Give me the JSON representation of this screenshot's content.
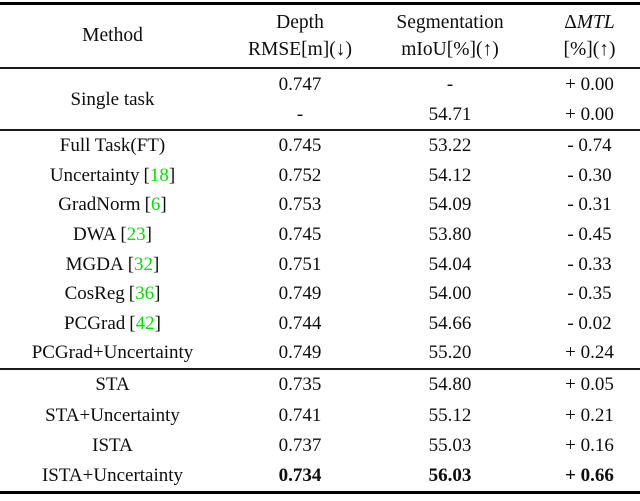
{
  "table": {
    "header": {
      "method": "Method",
      "depth_line1": "Depth",
      "depth_line2": "RMSE[m](↓)",
      "seg_line1": "Segmentation",
      "seg_line2": "mIoU[%](↑)",
      "mtl_delta": "Δ",
      "mtl_italic": "MTL",
      "mtl_line2": "[%](↑)"
    },
    "single_task": {
      "label": "Single task",
      "row1": {
        "depth": "0.747",
        "seg": "-",
        "mtl": "+ 0.00"
      },
      "row2": {
        "depth": "-",
        "seg": "54.71",
        "mtl": "+ 0.00"
      }
    },
    "baseline_rows": [
      {
        "name": "Full Task(FT)",
        "cite": "",
        "depth": "0.745",
        "seg": "53.22",
        "mtl": "- 0.74"
      },
      {
        "name": "Uncertainty",
        "cite": "18",
        "depth": "0.752",
        "seg": "54.12",
        "mtl": "- 0.30"
      },
      {
        "name": "GradNorm",
        "cite": "6",
        "depth": "0.753",
        "seg": "54.09",
        "mtl": "- 0.31"
      },
      {
        "name": "DWA",
        "cite": "23",
        "depth": "0.745",
        "seg": "53.80",
        "mtl": "- 0.45"
      },
      {
        "name": "MGDA",
        "cite": "32",
        "depth": "0.751",
        "seg": "54.04",
        "mtl": "- 0.33"
      },
      {
        "name": "CosReg",
        "cite": "36",
        "depth": "0.749",
        "seg": "54.00",
        "mtl": "- 0.35"
      },
      {
        "name": "PCGrad",
        "cite": "42",
        "depth": "0.744",
        "seg": "54.66",
        "mtl": "- 0.02"
      },
      {
        "name": "PCGrad+Uncertainty",
        "cite": "",
        "depth": "0.749",
        "seg": "55.20",
        "mtl": "+ 0.24"
      }
    ],
    "proposed_rows": [
      {
        "name": "STA",
        "cite": "",
        "depth": "0.735",
        "seg": "54.80",
        "mtl": "+ 0.05",
        "bold": false
      },
      {
        "name": "STA+Uncertainty",
        "cite": "",
        "depth": "0.741",
        "seg": "55.12",
        "mtl": "+ 0.21",
        "bold": false
      },
      {
        "name": "ISTA",
        "cite": "",
        "depth": "0.737",
        "seg": "55.03",
        "mtl": "+ 0.16",
        "bold": false
      },
      {
        "name": "ISTA+Uncertainty",
        "cite": "",
        "depth": "0.734",
        "seg": "56.03",
        "mtl": "+ 0.66",
        "bold": true
      }
    ],
    "colors": {
      "citation_green": "#00e400",
      "text": "#0d0d0d",
      "rule": "#000000"
    }
  }
}
